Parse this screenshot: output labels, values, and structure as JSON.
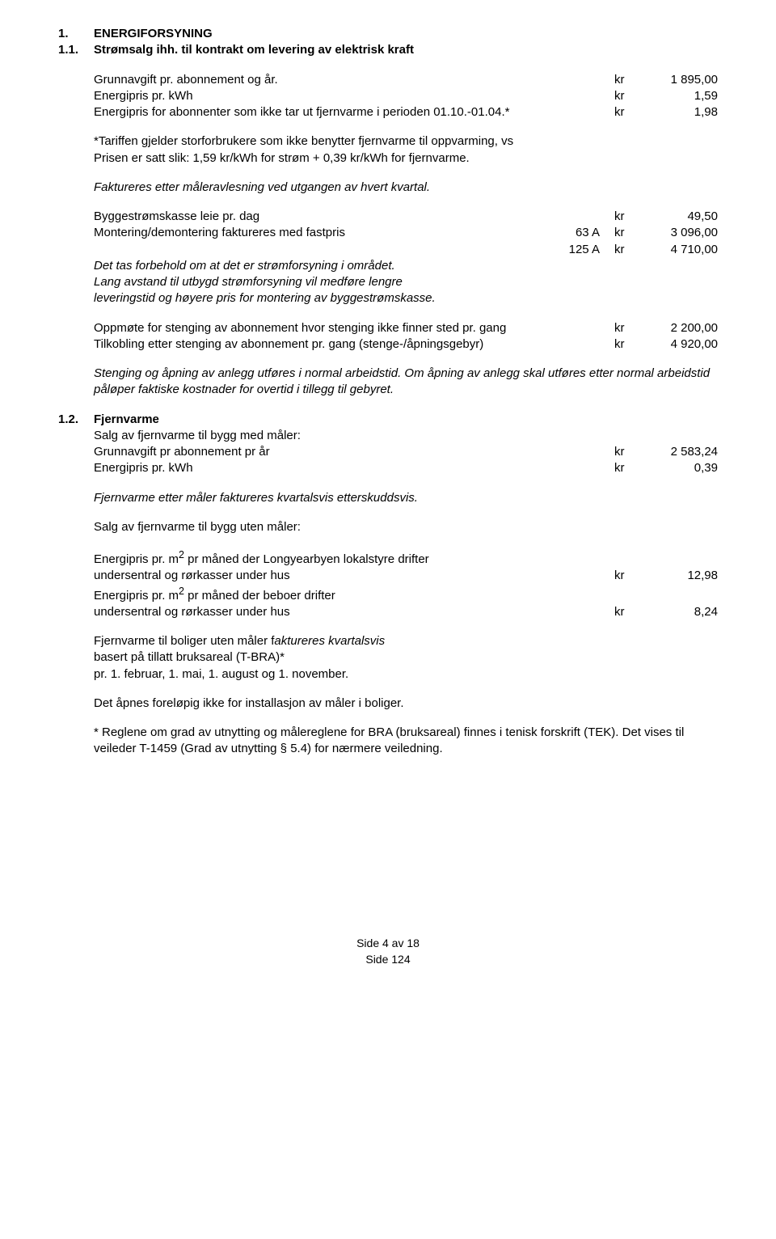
{
  "s1": {
    "num": "1.",
    "title": "ENERGIFORSYNING"
  },
  "s11": {
    "num": "1.1.",
    "title": "Strømsalg ihh. til kontrakt om levering av elektrisk kraft"
  },
  "rows1": {
    "r1": {
      "label": "Grunnavgift  pr. abonnement og år.",
      "kr": "kr",
      "val": "1 895,00"
    },
    "r2": {
      "label": "Energipris pr. kWh",
      "kr": "kr",
      "val": "1,59"
    },
    "r3": {
      "label": "Energipris for abonnenter som ikke tar ut fjernvarme i perioden 01.10.-01.04.*",
      "kr": "kr",
      "val": "1,98"
    }
  },
  "tariff": {
    "l1": "*Tariffen gjelder storforbrukere som ikke benytter fjernvarme til oppvarming, vs",
    "l2": "Prisen er satt slik: 1,59 kr/kWh for strøm + 0,39 kr/kWh for fjernvarme."
  },
  "faktureres1": "Faktureres etter måleravlesning ved utgangen av hvert kvartal.",
  "rows2": {
    "r1": {
      "label": "Byggestrømskasse leie pr. dag",
      "mid": "",
      "kr": "kr",
      "val": "49,50"
    },
    "r2": {
      "label": "Montering/demontering faktureres med fastpris",
      "mid": "63 A",
      "kr": "kr",
      "val": "3 096,00"
    },
    "r3": {
      "label": "",
      "mid": "125 A",
      "kr": "kr",
      "val": "4 710,00"
    }
  },
  "forbehold": {
    "l1": "Det tas forbehold om at det er strømforsyning i området.",
    "l2": "Lang avstand til utbygd strømforsyning vil medføre lengre",
    "l3": "leveringstid og høyere pris for montering av byggestrømskasse."
  },
  "rows3": {
    "r1": {
      "label": "Oppmøte for stenging av abonnement hvor stenging ikke finner sted pr. gang",
      "kr": "kr",
      "val": "2 200,00"
    },
    "r2": {
      "label": "Tilkobling etter stenging av abonnement pr. gang (stenge-/åpningsgebyr)",
      "kr": "kr",
      "val": "4 920,00"
    }
  },
  "note1": "Stenging og åpning av anlegg utføres i normal arbeidstid. Om åpning av anlegg skal utføres etter normal arbeidstid påløper faktiske kostnader for overtid i tillegg til gebyret.",
  "s12": {
    "num": "1.2.",
    "title": "Fjernvarme",
    "sub": "Salg av fjernvarme til bygg med måler:"
  },
  "rows4": {
    "r1": {
      "label": "Grunnavgift pr abonnement pr år",
      "kr": "kr",
      "val": "2 583,24"
    },
    "r2": {
      "label": "Energipris pr. kWh",
      "kr": "kr",
      "val": "0,39"
    }
  },
  "note2": "Fjernvarme etter måler faktureres kvartalsvis etterskuddsvis.",
  "sub2": "Salg av fjernvarme til bygg uten måler:",
  "rows5": {
    "r1a": "Energipris pr. m",
    "r1sup": "2",
    "r1b": " pr måned der Longyearbyen lokalstyre drifter",
    "r1c": {
      "label": "undersentral og rørkasser under hus",
      "kr": "kr",
      "val": "12,98"
    },
    "r2a": "Energipris pr. m",
    "r2sup": "2",
    "r2b": " pr måned der beboer drifter",
    "r2c": {
      "label": "undersentral og rørkasser under hus",
      "kr": "kr",
      "val": "8,24"
    }
  },
  "block3": {
    "l1a": "Fjernvarme til boliger uten måler f",
    "l1b": "aktureres kvartalsvis",
    "l2": "basert på tillatt bruksareal (T-BRA)*",
    "l3": "pr. 1. februar, 1. mai, 1. august og 1. november."
  },
  "note3": "Det åpnes foreløpig ikke for installasjon av måler i boliger.",
  "note4": "* Reglene om grad av utnytting og målereglene for BRA (bruksareal) finnes i tenisk forskrift (TEK). Det vises til veileder T-1459 (Grad av utnytting § 5.4) for nærmere veiledning.",
  "footer": {
    "l1": "Side 4 av 18",
    "l2": "Side 124"
  }
}
